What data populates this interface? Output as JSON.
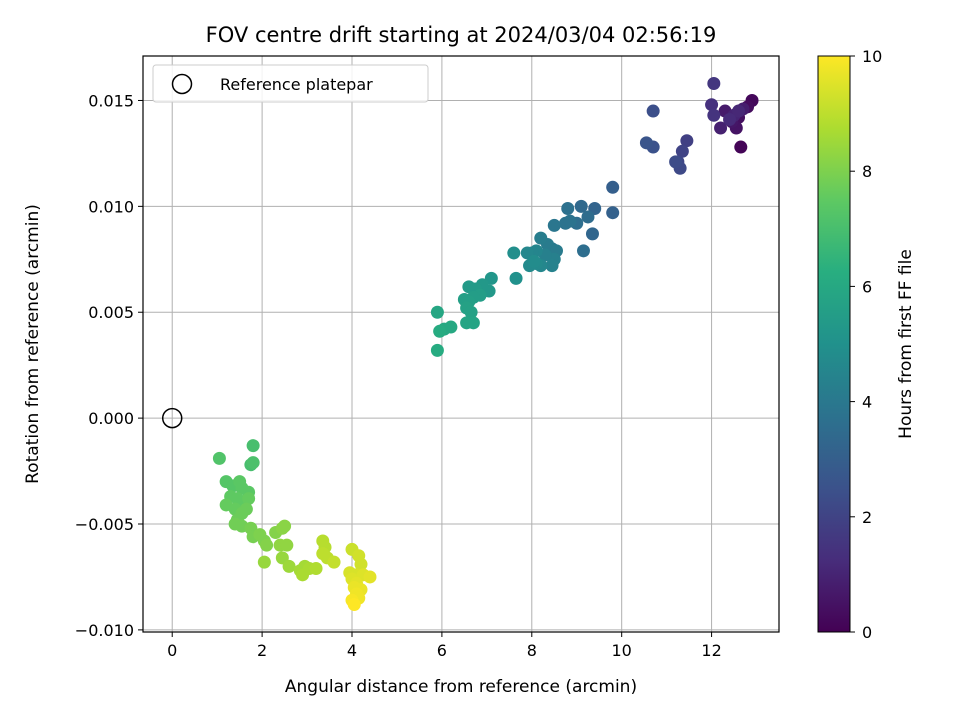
{
  "chart_data": {
    "type": "scatter",
    "title": "FOV centre drift starting at 2024/03/04 02:56:19",
    "xlabel": "Angular distance from reference (arcmin)",
    "ylabel": "Rotation from reference (arcmin)",
    "xlim": [
      -0.65,
      13.5
    ],
    "ylim": [
      -0.0101,
      0.0171
    ],
    "xticks": [
      0,
      2,
      4,
      6,
      8,
      10,
      12
    ],
    "xtick_labels": [
      "0",
      "2",
      "4",
      "6",
      "8",
      "10",
      "12"
    ],
    "yticks": [
      -0.01,
      -0.005,
      0.0,
      0.005,
      0.01,
      0.015
    ],
    "ytick_labels": [
      "−0.010",
      "−0.005",
      "0.000",
      "0.005",
      "0.010",
      "0.015"
    ],
    "grid": true,
    "legend": {
      "position": "top-left",
      "entries": [
        "Reference platepar"
      ]
    },
    "reference_point": {
      "x": 0.0,
      "y": 0.0
    },
    "colorbar": {
      "label": "Hours from first FF file",
      "colormap": "viridis",
      "range": [
        0,
        10
      ],
      "ticks": [
        0,
        2,
        4,
        6,
        8,
        10
      ],
      "tick_labels": [
        "0",
        "2",
        "4",
        "6",
        "8",
        "10"
      ]
    },
    "points": [
      {
        "x": 12.65,
        "y": 0.0128,
        "h": 0.1
      },
      {
        "x": 12.9,
        "y": 0.015,
        "h": 0.2
      },
      {
        "x": 12.8,
        "y": 0.0147,
        "h": 0.3
      },
      {
        "x": 12.6,
        "y": 0.0142,
        "h": 0.4
      },
      {
        "x": 12.55,
        "y": 0.0137,
        "h": 0.5
      },
      {
        "x": 12.45,
        "y": 0.014,
        "h": 0.6
      },
      {
        "x": 12.3,
        "y": 0.0145,
        "h": 0.7
      },
      {
        "x": 12.7,
        "y": 0.0146,
        "h": 0.8
      },
      {
        "x": 12.2,
        "y": 0.0137,
        "h": 0.9
      },
      {
        "x": 12.5,
        "y": 0.0143,
        "h": 1.0
      },
      {
        "x": 12.6,
        "y": 0.0145,
        "h": 1.1
      },
      {
        "x": 12.4,
        "y": 0.0141,
        "h": 1.2
      },
      {
        "x": 12.0,
        "y": 0.0148,
        "h": 1.4
      },
      {
        "x": 12.05,
        "y": 0.0143,
        "h": 1.5
      },
      {
        "x": 12.05,
        "y": 0.0158,
        "h": 1.6
      },
      {
        "x": 11.45,
        "y": 0.0131,
        "h": 1.9
      },
      {
        "x": 11.35,
        "y": 0.0126,
        "h": 2.0
      },
      {
        "x": 11.25,
        "y": 0.0121,
        "h": 2.1
      },
      {
        "x": 11.3,
        "y": 0.0118,
        "h": 2.2
      },
      {
        "x": 11.2,
        "y": 0.0121,
        "h": 2.3
      },
      {
        "x": 10.7,
        "y": 0.0145,
        "h": 2.4
      },
      {
        "x": 10.7,
        "y": 0.0128,
        "h": 2.5
      },
      {
        "x": 10.55,
        "y": 0.013,
        "h": 2.6
      },
      {
        "x": 9.8,
        "y": 0.0109,
        "h": 3.0
      },
      {
        "x": 9.8,
        "y": 0.0097,
        "h": 3.1
      },
      {
        "x": 9.4,
        "y": 0.0099,
        "h": 3.2
      },
      {
        "x": 9.35,
        "y": 0.0087,
        "h": 3.3
      },
      {
        "x": 9.1,
        "y": 0.01,
        "h": 3.4
      },
      {
        "x": 9.25,
        "y": 0.0095,
        "h": 3.5
      },
      {
        "x": 9.0,
        "y": 0.0092,
        "h": 3.6
      },
      {
        "x": 9.15,
        "y": 0.0079,
        "h": 3.6
      },
      {
        "x": 8.8,
        "y": 0.0099,
        "h": 3.7
      },
      {
        "x": 8.75,
        "y": 0.0092,
        "h": 3.8
      },
      {
        "x": 8.85,
        "y": 0.0093,
        "h": 3.8
      },
      {
        "x": 8.5,
        "y": 0.0091,
        "h": 3.9
      },
      {
        "x": 8.45,
        "y": 0.008,
        "h": 4.0
      },
      {
        "x": 8.35,
        "y": 0.0082,
        "h": 4.1
      },
      {
        "x": 8.55,
        "y": 0.0079,
        "h": 4.1
      },
      {
        "x": 8.2,
        "y": 0.0085,
        "h": 4.2
      },
      {
        "x": 8.5,
        "y": 0.0075,
        "h": 4.3
      },
      {
        "x": 8.3,
        "y": 0.0077,
        "h": 4.3
      },
      {
        "x": 8.45,
        "y": 0.0072,
        "h": 4.4
      },
      {
        "x": 8.1,
        "y": 0.0079,
        "h": 4.5
      },
      {
        "x": 8.0,
        "y": 0.0078,
        "h": 4.5
      },
      {
        "x": 7.9,
        "y": 0.0078,
        "h": 4.6
      },
      {
        "x": 8.2,
        "y": 0.0072,
        "h": 4.6
      },
      {
        "x": 8.1,
        "y": 0.0073,
        "h": 4.7
      },
      {
        "x": 7.95,
        "y": 0.0072,
        "h": 4.7
      },
      {
        "x": 8.05,
        "y": 0.0074,
        "h": 4.8
      },
      {
        "x": 7.6,
        "y": 0.0078,
        "h": 4.9
      },
      {
        "x": 7.65,
        "y": 0.0066,
        "h": 5.0
      },
      {
        "x": 7.1,
        "y": 0.0066,
        "h": 5.2
      },
      {
        "x": 7.05,
        "y": 0.006,
        "h": 5.3
      },
      {
        "x": 6.9,
        "y": 0.0063,
        "h": 5.3
      },
      {
        "x": 6.75,
        "y": 0.0061,
        "h": 5.4
      },
      {
        "x": 6.6,
        "y": 0.0062,
        "h": 5.4
      },
      {
        "x": 6.85,
        "y": 0.0058,
        "h": 5.5
      },
      {
        "x": 6.7,
        "y": 0.0057,
        "h": 5.5
      },
      {
        "x": 6.5,
        "y": 0.0056,
        "h": 5.6
      },
      {
        "x": 6.6,
        "y": 0.0055,
        "h": 5.6
      },
      {
        "x": 6.55,
        "y": 0.0052,
        "h": 5.7
      },
      {
        "x": 6.65,
        "y": 0.005,
        "h": 5.7
      },
      {
        "x": 6.7,
        "y": 0.0045,
        "h": 5.8
      },
      {
        "x": 6.55,
        "y": 0.0045,
        "h": 5.8
      },
      {
        "x": 5.9,
        "y": 0.005,
        "h": 5.9
      },
      {
        "x": 6.2,
        "y": 0.0043,
        "h": 6.0
      },
      {
        "x": 6.05,
        "y": 0.0042,
        "h": 6.0
      },
      {
        "x": 5.95,
        "y": 0.0041,
        "h": 6.1
      },
      {
        "x": 5.9,
        "y": 0.0032,
        "h": 6.1
      },
      {
        "x": 1.8,
        "y": -0.0013,
        "h": 7.0
      },
      {
        "x": 1.75,
        "y": -0.0022,
        "h": 7.0
      },
      {
        "x": 1.8,
        "y": -0.0021,
        "h": 7.1
      },
      {
        "x": 1.05,
        "y": -0.0019,
        "h": 7.2
      },
      {
        "x": 1.2,
        "y": -0.003,
        "h": 7.3
      },
      {
        "x": 1.35,
        "y": -0.0032,
        "h": 7.3
      },
      {
        "x": 1.55,
        "y": -0.0033,
        "h": 7.4
      },
      {
        "x": 1.5,
        "y": -0.003,
        "h": 7.4
      },
      {
        "x": 1.7,
        "y": -0.0035,
        "h": 7.4
      },
      {
        "x": 1.3,
        "y": -0.0037,
        "h": 7.5
      },
      {
        "x": 1.45,
        "y": -0.0038,
        "h": 7.5
      },
      {
        "x": 1.6,
        "y": -0.004,
        "h": 7.5
      },
      {
        "x": 1.7,
        "y": -0.0038,
        "h": 7.6
      },
      {
        "x": 1.2,
        "y": -0.0041,
        "h": 7.6
      },
      {
        "x": 1.4,
        "y": -0.0043,
        "h": 7.6
      },
      {
        "x": 1.65,
        "y": -0.0043,
        "h": 7.7
      },
      {
        "x": 1.55,
        "y": -0.0045,
        "h": 7.7
      },
      {
        "x": 1.45,
        "y": -0.0048,
        "h": 7.7
      },
      {
        "x": 1.4,
        "y": -0.005,
        "h": 7.8
      },
      {
        "x": 1.55,
        "y": -0.0051,
        "h": 7.8
      },
      {
        "x": 1.75,
        "y": -0.0052,
        "h": 7.9
      },
      {
        "x": 1.8,
        "y": -0.0056,
        "h": 7.9
      },
      {
        "x": 1.95,
        "y": -0.0055,
        "h": 8.0
      },
      {
        "x": 2.05,
        "y": -0.0058,
        "h": 8.0
      },
      {
        "x": 2.1,
        "y": -0.006,
        "h": 8.1
      },
      {
        "x": 2.3,
        "y": -0.0054,
        "h": 8.1
      },
      {
        "x": 2.45,
        "y": -0.0052,
        "h": 8.2
      },
      {
        "x": 2.5,
        "y": -0.0051,
        "h": 8.2
      },
      {
        "x": 2.4,
        "y": -0.006,
        "h": 8.3
      },
      {
        "x": 2.55,
        "y": -0.006,
        "h": 8.3
      },
      {
        "x": 2.05,
        "y": -0.0068,
        "h": 8.4
      },
      {
        "x": 2.45,
        "y": -0.0066,
        "h": 8.4
      },
      {
        "x": 2.6,
        "y": -0.007,
        "h": 8.5
      },
      {
        "x": 2.85,
        "y": -0.0072,
        "h": 8.6
      },
      {
        "x": 2.95,
        "y": -0.007,
        "h": 8.6
      },
      {
        "x": 2.9,
        "y": -0.0074,
        "h": 8.7
      },
      {
        "x": 3.05,
        "y": -0.0071,
        "h": 8.7
      },
      {
        "x": 3.2,
        "y": -0.0071,
        "h": 8.8
      },
      {
        "x": 3.35,
        "y": -0.0058,
        "h": 8.9
      },
      {
        "x": 3.4,
        "y": -0.0061,
        "h": 8.9
      },
      {
        "x": 3.35,
        "y": -0.0064,
        "h": 9.0
      },
      {
        "x": 3.45,
        "y": -0.0066,
        "h": 9.0
      },
      {
        "x": 3.6,
        "y": -0.0068,
        "h": 9.1
      },
      {
        "x": 4.0,
        "y": -0.0062,
        "h": 9.2
      },
      {
        "x": 4.15,
        "y": -0.0065,
        "h": 9.3
      },
      {
        "x": 4.2,
        "y": -0.0069,
        "h": 9.3
      },
      {
        "x": 3.95,
        "y": -0.0073,
        "h": 9.4
      },
      {
        "x": 4.1,
        "y": -0.0074,
        "h": 9.4
      },
      {
        "x": 4.0,
        "y": -0.0076,
        "h": 9.5
      },
      {
        "x": 4.25,
        "y": -0.0074,
        "h": 9.5
      },
      {
        "x": 4.4,
        "y": -0.0075,
        "h": 9.6
      },
      {
        "x": 4.1,
        "y": -0.0078,
        "h": 9.6
      },
      {
        "x": 4.05,
        "y": -0.008,
        "h": 9.7
      },
      {
        "x": 4.2,
        "y": -0.0081,
        "h": 9.7
      },
      {
        "x": 4.1,
        "y": -0.0083,
        "h": 9.8
      },
      {
        "x": 4.15,
        "y": -0.0085,
        "h": 9.8
      },
      {
        "x": 4.0,
        "y": -0.0086,
        "h": 9.9
      },
      {
        "x": 4.05,
        "y": -0.0088,
        "h": 10.0
      }
    ]
  }
}
